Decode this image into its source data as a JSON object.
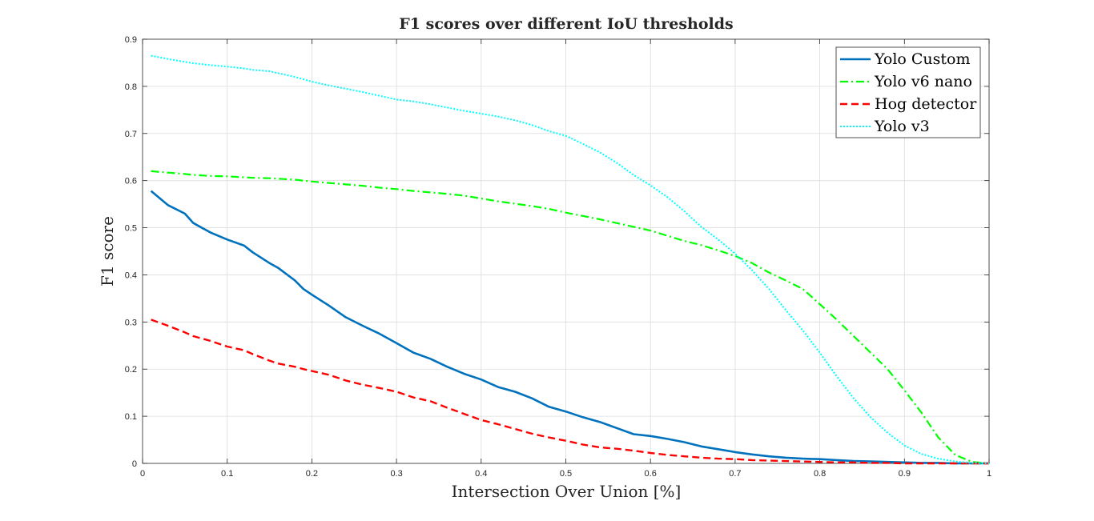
{
  "chart_data": {
    "type": "line",
    "title": "F1 scores over different IoU thresholds",
    "xlabel": "Intersection Over Union [%]",
    "ylabel": "F1 score",
    "xlim": [
      0,
      1
    ],
    "ylim": [
      0,
      0.9
    ],
    "xticks": [
      "0",
      "0.1",
      "0.2",
      "0.3",
      "0.4",
      "0.5",
      "0.6",
      "0.7",
      "0.8",
      "0.9",
      "1"
    ],
    "yticks": [
      "0",
      "0.1",
      "0.2",
      "0.3",
      "0.4",
      "0.5",
      "0.6",
      "0.7",
      "0.8",
      "0.9"
    ],
    "grid": true,
    "legend_position": "top-right",
    "x": [
      0.01,
      0.03,
      0.05,
      0.06,
      0.08,
      0.1,
      0.12,
      0.13,
      0.15,
      0.16,
      0.18,
      0.19,
      0.2,
      0.22,
      0.24,
      0.26,
      0.28,
      0.3,
      0.32,
      0.34,
      0.36,
      0.38,
      0.4,
      0.42,
      0.44,
      0.46,
      0.48,
      0.5,
      0.52,
      0.54,
      0.56,
      0.58,
      0.6,
      0.62,
      0.64,
      0.66,
      0.68,
      0.7,
      0.72,
      0.74,
      0.76,
      0.78,
      0.8,
      0.82,
      0.84,
      0.86,
      0.88,
      0.9,
      0.92,
      0.94,
      0.96,
      0.98,
      1.0
    ],
    "series": [
      {
        "name": "Yolo Custom",
        "color": "#0072bd",
        "dash": "solid",
        "values": [
          0.578,
          0.548,
          0.53,
          0.51,
          0.49,
          0.475,
          0.462,
          0.448,
          0.425,
          0.415,
          0.388,
          0.37,
          0.358,
          0.335,
          0.31,
          0.292,
          0.275,
          0.255,
          0.235,
          0.222,
          0.205,
          0.19,
          0.178,
          0.162,
          0.152,
          0.138,
          0.12,
          0.11,
          0.098,
          0.088,
          0.075,
          0.062,
          0.058,
          0.052,
          0.045,
          0.036,
          0.03,
          0.024,
          0.019,
          0.015,
          0.012,
          0.01,
          0.009,
          0.007,
          0.005,
          0.004,
          0.003,
          0.002,
          0.001,
          0.001,
          0.0,
          0.0,
          0.0
        ]
      },
      {
        "name": "Yolo v6 nano",
        "color": "#00ff00",
        "dash": "dashdot",
        "values": [
          0.62,
          0.617,
          0.614,
          0.612,
          0.61,
          0.609,
          0.607,
          0.606,
          0.605,
          0.604,
          0.602,
          0.6,
          0.598,
          0.595,
          0.592,
          0.589,
          0.585,
          0.582,
          0.578,
          0.575,
          0.572,
          0.568,
          0.562,
          0.556,
          0.551,
          0.546,
          0.54,
          0.532,
          0.525,
          0.518,
          0.51,
          0.502,
          0.494,
          0.483,
          0.472,
          0.463,
          0.452,
          0.44,
          0.425,
          0.405,
          0.388,
          0.37,
          0.338,
          0.305,
          0.27,
          0.235,
          0.2,
          0.155,
          0.108,
          0.055,
          0.018,
          0.003,
          0.0
        ]
      },
      {
        "name": "Hog detector",
        "color": "#ff0000",
        "dash": "dashed",
        "values": [
          0.305,
          0.292,
          0.278,
          0.27,
          0.26,
          0.248,
          0.24,
          0.232,
          0.218,
          0.212,
          0.205,
          0.2,
          0.196,
          0.188,
          0.176,
          0.167,
          0.16,
          0.152,
          0.14,
          0.132,
          0.118,
          0.105,
          0.092,
          0.083,
          0.073,
          0.063,
          0.055,
          0.048,
          0.04,
          0.034,
          0.031,
          0.027,
          0.022,
          0.018,
          0.015,
          0.012,
          0.01,
          0.009,
          0.007,
          0.006,
          0.005,
          0.004,
          0.003,
          0.002,
          0.002,
          0.001,
          0.001,
          0.0,
          0.0,
          0.0,
          0.0,
          0.0,
          0.0
        ]
      },
      {
        "name": "Yolo v3",
        "color": "#00ffff",
        "dash": "dotted",
        "values": [
          0.865,
          0.858,
          0.852,
          0.849,
          0.845,
          0.842,
          0.838,
          0.835,
          0.832,
          0.828,
          0.82,
          0.815,
          0.81,
          0.802,
          0.795,
          0.788,
          0.78,
          0.772,
          0.768,
          0.762,
          0.755,
          0.748,
          0.742,
          0.736,
          0.728,
          0.718,
          0.705,
          0.695,
          0.678,
          0.66,
          0.638,
          0.612,
          0.59,
          0.565,
          0.535,
          0.502,
          0.475,
          0.445,
          0.41,
          0.37,
          0.325,
          0.282,
          0.235,
          0.185,
          0.138,
          0.098,
          0.065,
          0.038,
          0.02,
          0.01,
          0.004,
          0.001,
          0.0
        ]
      }
    ]
  }
}
